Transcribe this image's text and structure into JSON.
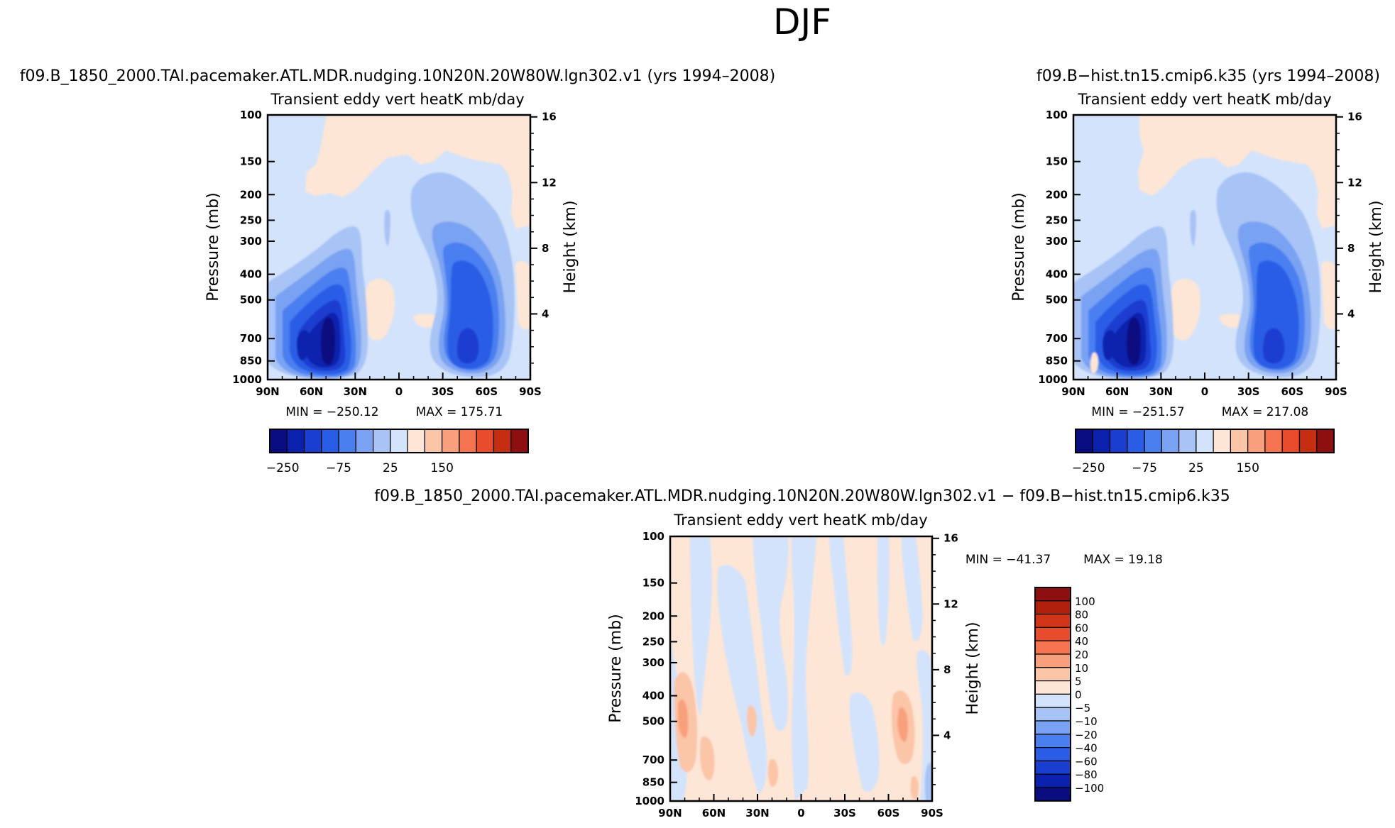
{
  "page_title": "DJF",
  "colors": {
    "std_scale": [
      "#0a0d80",
      "#0a21ad",
      "#1a3ed0",
      "#2a5de6",
      "#4a7ff0",
      "#7aa2f2",
      "#a8c3f5",
      "#d3e3fb",
      "#fde6d6",
      "#fbc5a8",
      "#f8a07c",
      "#f47350",
      "#e84c2c",
      "#c62e12",
      "#8e0f0f"
    ],
    "diff_scale": [
      "#0a0d80",
      "#0a21ad",
      "#1a3ed0",
      "#2a5de6",
      "#4a7ff0",
      "#7aa2f2",
      "#a8c3f5",
      "#d3e3fb",
      "#fde6d6",
      "#fbc5a8",
      "#f8a07c",
      "#f47350",
      "#e84c2c",
      "#d23418",
      "#b0200c",
      "#8e0f0f"
    ]
  },
  "chart_data": [
    {
      "type": "heatmap",
      "id": "case",
      "run_title": "f09.B_1850_2000.TAI.pacemaker.ATL.MDR.nudging.10N20N.20W80W.lgn302.v1 (yrs 1994–2008)",
      "title": "Transient eddy vert heatK mb/day",
      "ylabel": "Pressure (mb)",
      "y2label": "Height (km)",
      "x_ticks": [
        "90N",
        "60N",
        "30N",
        "0",
        "30S",
        "60S",
        "90S"
      ],
      "y_ticks": [
        "100",
        "150",
        "200",
        "250",
        "300",
        "400",
        "500",
        "700",
        "850",
        "1000"
      ],
      "y2_ticks": [
        "16",
        "12",
        "8",
        "4"
      ],
      "min_label": "MIN = −250.12",
      "max_label": "MAX = 175.71",
      "min": -250.12,
      "max": 175.71,
      "colorbar_labels": [
        "−250",
        "−75",
        "25",
        "150"
      ]
    },
    {
      "type": "heatmap",
      "id": "control",
      "run_title": "f09.B−hist.tn15.cmip6.k35 (yrs 1994–2008)",
      "title": "Transient eddy vert heatK mb/day",
      "ylabel": "Pressure (mb)",
      "y2label": "Height (km)",
      "x_ticks": [
        "90N",
        "60N",
        "30N",
        "0",
        "30S",
        "60S",
        "90S"
      ],
      "y_ticks": [
        "100",
        "150",
        "200",
        "250",
        "300",
        "400",
        "500",
        "700",
        "850",
        "1000"
      ],
      "y2_ticks": [
        "16",
        "12",
        "8",
        "4"
      ],
      "min_label": "MIN = −251.57",
      "max_label": "MAX = 217.08",
      "min": -251.57,
      "max": 217.08,
      "colorbar_labels": [
        "−250",
        "−75",
        "25",
        "150"
      ]
    },
    {
      "type": "heatmap",
      "id": "diff",
      "run_title": "f09.B_1850_2000.TAI.pacemaker.ATL.MDR.nudging.10N20N.20W80W.lgn302.v1 − f09.B−hist.tn15.cmip6.k35",
      "title": "Transient eddy vert heatK mb/day",
      "ylabel": "Pressure (mb)",
      "y2label": "Height (km)",
      "x_ticks": [
        "90N",
        "60N",
        "30N",
        "0",
        "30S",
        "60S",
        "90S"
      ],
      "y_ticks": [
        "100",
        "150",
        "200",
        "250",
        "300",
        "400",
        "500",
        "700",
        "850",
        "1000"
      ],
      "y2_ticks": [
        "16",
        "12",
        "8",
        "4"
      ],
      "min_label": "MIN = −41.37",
      "max_label": "MAX =  19.18",
      "min": -41.37,
      "max": 19.18,
      "colorbar_labels": [
        "100",
        "80",
        "60",
        "40",
        "20",
        "10",
        "5",
        "0",
        "−5",
        "−10",
        "−20",
        "−40",
        "−60",
        "−80",
        "−100"
      ]
    }
  ]
}
